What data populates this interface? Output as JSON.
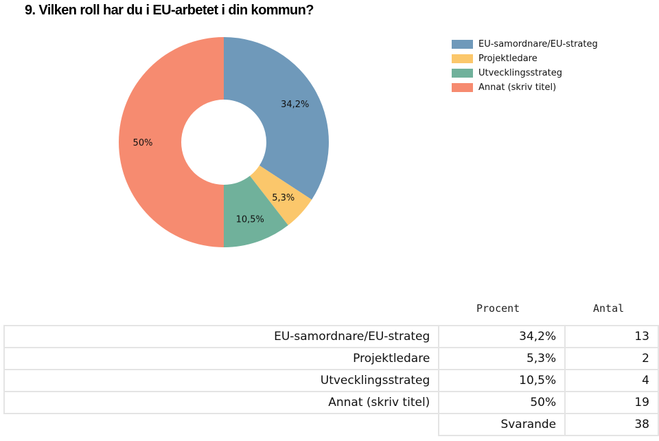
{
  "title": "9. Vilken roll har du i EU-arbetet i din kommun?",
  "chart_data": {
    "type": "pie",
    "donut": true,
    "categories": [
      "EU-samordnare/EU-strateg",
      "Projektledare",
      "Utvecklingsstrateg",
      "Annat (skriv titel)"
    ],
    "values": [
      34.2,
      5.3,
      10.5,
      50
    ],
    "data_labels": [
      "34,2%",
      "5,3%",
      "10,5%",
      "50%"
    ],
    "colors": [
      "#6f99ba",
      "#fbc76b",
      "#70b19b",
      "#f68b70"
    ],
    "legend_position": "top-right"
  },
  "table": {
    "headers": [
      "Procent",
      "Antal"
    ],
    "rows": [
      {
        "label": "EU-samordnare/EU-strateg",
        "percent": "34,2%",
        "count": "13"
      },
      {
        "label": "Projektledare",
        "percent": "5,3%",
        "count": "2"
      },
      {
        "label": "Utvecklingsstrateg",
        "percent": "10,5%",
        "count": "4"
      },
      {
        "label": "Annat (skriv titel)",
        "percent": "50%",
        "count": "19"
      }
    ],
    "total_label": "Svarande",
    "total": "38"
  }
}
